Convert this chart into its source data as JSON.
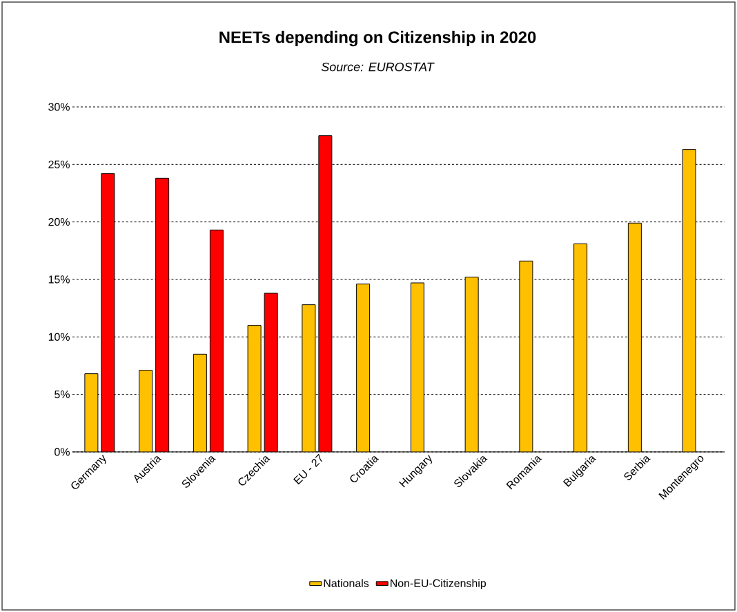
{
  "chart_data": {
    "type": "bar",
    "title": "NEETs depending on Citizenship in 2020",
    "subtitle": "Source: EUROSTAT",
    "categories": [
      "Germany",
      "Austria",
      "Slovenia",
      "Czechia",
      "EU - 27",
      "Croatia",
      "Hungary",
      "Slovakia",
      "Romania",
      "Bulgaria",
      "Serbia",
      "Montenegro"
    ],
    "series": [
      {
        "name": "Nationals",
        "color": "#ffc000",
        "values": [
          6.8,
          7.1,
          8.5,
          11.0,
          12.8,
          14.6,
          14.7,
          15.2,
          16.6,
          18.1,
          19.9,
          26.3
        ]
      },
      {
        "name": "Non-EU-Citizenship",
        "color": "#ff0000",
        "values": [
          24.2,
          23.8,
          19.3,
          13.8,
          27.5,
          null,
          null,
          null,
          null,
          null,
          null,
          null
        ]
      }
    ],
    "ylim": [
      0,
      30
    ],
    "yticks": [
      {
        "value": 0,
        "label": "0%"
      },
      {
        "value": 5,
        "label": "5%"
      },
      {
        "value": 10,
        "label": "10%"
      },
      {
        "value": 15,
        "label": "15%"
      },
      {
        "value": 20,
        "label": "20%"
      },
      {
        "value": 25,
        "label": "25%"
      },
      {
        "value": 30,
        "label": "30%"
      }
    ],
    "grid": "y",
    "legend": "bottom"
  }
}
